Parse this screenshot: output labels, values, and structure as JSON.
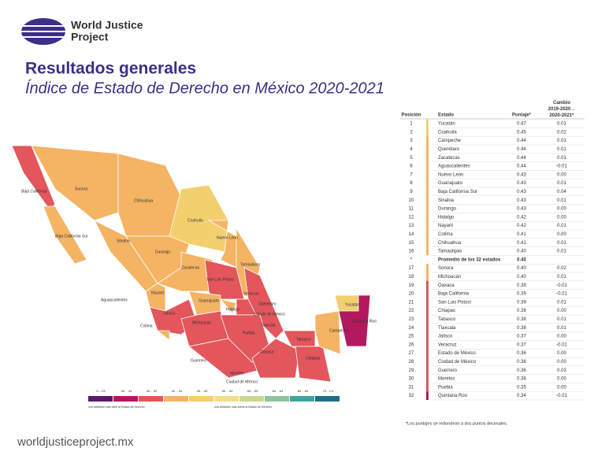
{
  "header": {
    "logo_line1": "World Justice",
    "logo_line2": "Project",
    "title": "Resultados generales",
    "subtitle": "Índice de Estado de Derecho en México 2020-2021"
  },
  "table": {
    "columns": [
      "Posición",
      "Estado",
      "Puntaje*",
      "Cambio 2019-2020→ 2020-2021*"
    ],
    "rows": [
      [
        "1",
        "Yucatán",
        "0.47",
        "0.01",
        "#f3cf6e"
      ],
      [
        "2",
        "Coahuila",
        "0.45",
        "0.02",
        "#f3cf6e"
      ],
      [
        "3",
        "Campeche",
        "0.44",
        "0.01",
        "#f4b463"
      ],
      [
        "4",
        "Querétaro",
        "0.44",
        "0.01",
        "#f4b463"
      ],
      [
        "5",
        "Zacatecas",
        "0.44",
        "0.01",
        "#f4b463"
      ],
      [
        "6",
        "Aguascalientes",
        "0.44",
        "-0.01",
        "#f4b463"
      ],
      [
        "7",
        "Nuevo León",
        "0.43",
        "0.00",
        "#f4b463"
      ],
      [
        "8",
        "Guanajuato",
        "0.43",
        "0.01",
        "#f4b463"
      ],
      [
        "9",
        "Baja California Sur",
        "0.43",
        "0.04",
        "#f4b463"
      ],
      [
        "10",
        "Sinaloa",
        "0.43",
        "0.01",
        "#f4b463"
      ],
      [
        "11",
        "Durango",
        "0.43",
        "0.00",
        "#f4b463"
      ],
      [
        "12",
        "Hidalgo",
        "0.42",
        "0.00",
        "#f4b463"
      ],
      [
        "13",
        "Nayarit",
        "0.42",
        "0.01",
        "#f4b463"
      ],
      [
        "14",
        "Colima",
        "0.41",
        "0.00",
        "#f4b463"
      ],
      [
        "15",
        "Chihuahua",
        "0.41",
        "0.01",
        "#f4b463"
      ],
      [
        "16",
        "Tamaulipas",
        "0.40",
        "0.01",
        "#f4b463"
      ],
      [
        "*",
        "Promedio de los 32 estados",
        "0.40",
        "",
        ""
      ],
      [
        "17",
        "Sonora",
        "0.40",
        "0.02",
        "#f4b463"
      ],
      [
        "18",
        "Michoacán",
        "0.40",
        "0.01",
        "#f4b463"
      ],
      [
        "19",
        "Oaxaca",
        "0.39",
        "-0.01",
        "#e2565c"
      ],
      [
        "20",
        "Baja California",
        "0.39",
        "-0.01",
        "#e2565c"
      ],
      [
        "21",
        "San Luis Potosí",
        "0.39",
        "0.01",
        "#e2565c"
      ],
      [
        "22",
        "Chiapas",
        "0.38",
        "0.00",
        "#e2565c"
      ],
      [
        "23",
        "Tabasco",
        "0.38",
        "0.01",
        "#e2565c"
      ],
      [
        "24",
        "Tlaxcala",
        "0.38",
        "0.01",
        "#e2565c"
      ],
      [
        "25",
        "Jalisco",
        "0.37",
        "0.00",
        "#e2565c"
      ],
      [
        "26",
        "Veracruz",
        "0.37",
        "-0.01",
        "#e2565c"
      ],
      [
        "27",
        "Estado de México",
        "0.36",
        "0.00",
        "#e2565c"
      ],
      [
        "28",
        "Ciudad de México",
        "0.36",
        "0.00",
        "#e2565c"
      ],
      [
        "29",
        "Guerrero",
        "0.36",
        "0.03",
        "#e2565c"
      ],
      [
        "30",
        "Morelos",
        "0.36",
        "0.00",
        "#e2565c"
      ],
      [
        "31",
        "Puebla",
        "0.35",
        "0.00",
        "#e2565c"
      ],
      [
        "32",
        "Quintana Roo",
        "0.34",
        "-0.01",
        "#b3195e"
      ]
    ],
    "footnote": "*Los puntajes se redondean a dos puntos decimales."
  },
  "legend": {
    "items": [
      {
        "label": "0 - .29",
        "color": "#5b1a6e"
      },
      {
        "label": ".30 - .34",
        "color": "#b3195e"
      },
      {
        "label": ".35 - .39",
        "color": "#e2565c"
      },
      {
        "label": ".40 - .44",
        "color": "#f4b463"
      },
      {
        "label": ".45 - .49",
        "color": "#f3cf6e"
      },
      {
        "label": ".50 - .54",
        "color": "#f0e08a"
      },
      {
        "label": ".55 - .59",
        "color": "#c9d98a"
      },
      {
        "label": ".60 - .64",
        "color": "#8dc49a"
      },
      {
        "label": ".65 - .69",
        "color": "#3fa59c"
      },
      {
        "label": ".70 - 1.0",
        "color": "#1f6f86"
      }
    ],
    "weak_note": "una adhesión más débil al Estado de Derecho",
    "strong_note": "una adhesión más fuerte al Estado de Derecho"
  },
  "map_labels": [
    "Baja California",
    "Baja California Sur",
    "Sonora",
    "Chihuahua",
    "Coahuila",
    "Nuevo León",
    "Tamaulipas",
    "Sinaloa",
    "Durango",
    "Zacatecas",
    "San Luis Potosí",
    "Nayarit",
    "Aguascalientes",
    "Guanajuato",
    "Querétaro",
    "Hidalgo",
    "Veracruz",
    "Jalisco",
    "Colima",
    "Michoacán",
    "Estado de México",
    "Tlaxcala",
    "Puebla",
    "Guerrero",
    "Morelos",
    "Ciudad de México",
    "Oaxaca",
    "Tabasco",
    "Chiapas",
    "Campeche",
    "Yucatán",
    "Quintana Roo"
  ],
  "footer": "worldjusticeproject.mx"
}
